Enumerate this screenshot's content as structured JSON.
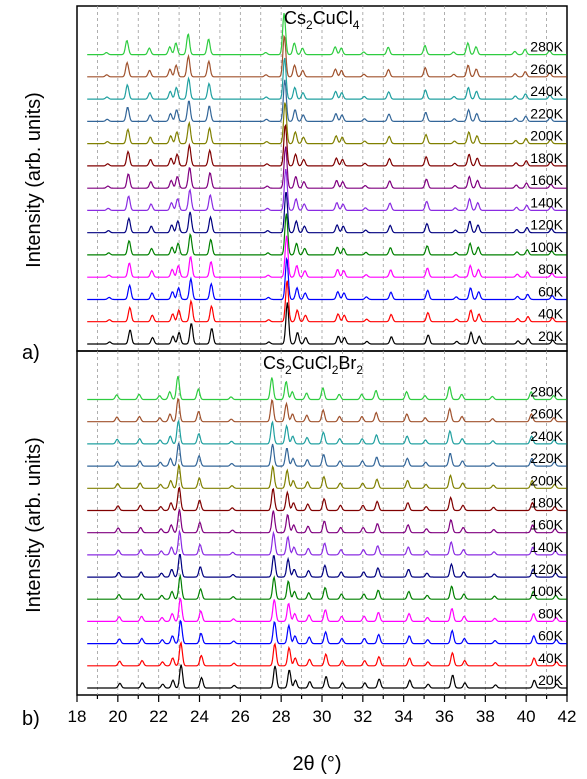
{
  "chart_data": {
    "type": "line",
    "xlabel": "2θ (°)",
    "ylabel": "Intensity (arb. units)",
    "xlim": [
      18,
      42
    ],
    "xticks": [
      18,
      20,
      22,
      24,
      26,
      28,
      30,
      32,
      34,
      36,
      38,
      40,
      42
    ],
    "grid": "vertical dashed",
    "temperatures": [
      "20K",
      "40K",
      "60K",
      "80K",
      "100K",
      "120K",
      "140K",
      "160K",
      "180K",
      "200K",
      "220K",
      "240K",
      "260K",
      "280K"
    ],
    "colors": [
      "#000000",
      "#ff0000",
      "#0000ff",
      "#ff00ff",
      "#008000",
      "#000080",
      "#8a2be2",
      "#800080",
      "#800000",
      "#808000",
      "#336699",
      "#20a0a0",
      "#a0522d",
      "#2ecc40"
    ],
    "panels": [
      {
        "letter": "a)",
        "title_main": "Cs",
        "title_sub1": "2",
        "title_mid": "CuCl",
        "title_sub2": "4",
        "title_end": "",
        "peaks": [
          [
            19.6,
            0.08
          ],
          [
            20.6,
            0.55
          ],
          [
            21.7,
            0.25
          ],
          [
            22.7,
            0.3
          ],
          [
            23.0,
            0.45
          ],
          [
            23.6,
            0.8
          ],
          [
            24.6,
            0.6
          ],
          [
            27.4,
            0.08
          ],
          [
            28.3,
            1.6
          ],
          [
            28.8,
            0.45
          ],
          [
            29.2,
            0.25
          ],
          [
            30.8,
            0.3
          ],
          [
            31.1,
            0.25
          ],
          [
            32.2,
            0.1
          ],
          [
            33.4,
            0.28
          ],
          [
            35.2,
            0.35
          ],
          [
            36.6,
            0.1
          ],
          [
            37.3,
            0.45
          ],
          [
            37.7,
            0.3
          ],
          [
            39.6,
            0.12
          ],
          [
            40.1,
            0.2
          ],
          [
            41.3,
            0.15
          ]
        ]
      },
      {
        "letter": "b)",
        "title_main": "Cs",
        "title_sub1": "2",
        "title_mid": "CuCl",
        "title_sub2": "2",
        "title_end": "Br",
        "title_sub3": "2",
        "peaks": [
          [
            20.1,
            0.18
          ],
          [
            21.2,
            0.2
          ],
          [
            22.2,
            0.15
          ],
          [
            22.7,
            0.3
          ],
          [
            23.1,
            0.9
          ],
          [
            24.1,
            0.4
          ],
          [
            25.7,
            0.1
          ],
          [
            27.7,
            0.85
          ],
          [
            28.4,
            0.7
          ],
          [
            28.7,
            0.3
          ],
          [
            29.4,
            0.25
          ],
          [
            30.2,
            0.45
          ],
          [
            31.0,
            0.2
          ],
          [
            32.1,
            0.2
          ],
          [
            32.8,
            0.35
          ],
          [
            34.3,
            0.3
          ],
          [
            35.2,
            0.15
          ],
          [
            36.4,
            0.5
          ],
          [
            37.0,
            0.2
          ],
          [
            38.5,
            0.12
          ],
          [
            40.4,
            0.3
          ],
          [
            41.5,
            0.15
          ]
        ]
      }
    ]
  }
}
